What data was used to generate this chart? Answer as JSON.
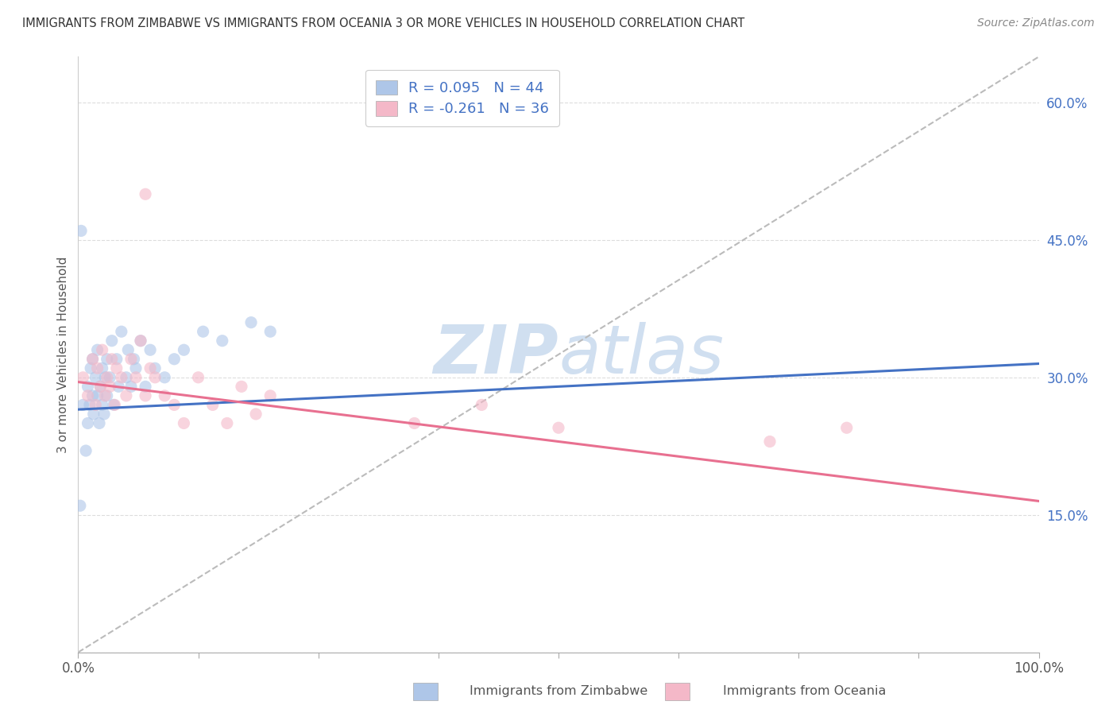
{
  "title": "IMMIGRANTS FROM ZIMBABWE VS IMMIGRANTS FROM OCEANIA 3 OR MORE VEHICLES IN HOUSEHOLD CORRELATION CHART",
  "source": "Source: ZipAtlas.com",
  "ylabel": "3 or more Vehicles in Household",
  "yticks": [
    0.0,
    0.15,
    0.3,
    0.45,
    0.6
  ],
  "ytick_labels": [
    "",
    "15.0%",
    "30.0%",
    "45.0%",
    "60.0%"
  ],
  "xlim": [
    0.0,
    1.0
  ],
  "ylim": [
    0.0,
    0.65
  ],
  "xtick_positions": [
    0.0,
    0.125,
    0.25,
    0.375,
    0.5,
    0.625,
    0.75,
    0.875,
    1.0
  ],
  "legend_entries": [
    {
      "color": "#aec6e8",
      "R": "0.095",
      "N": "44"
    },
    {
      "color": "#f4b8c8",
      "R": "-0.261",
      "N": "36"
    }
  ],
  "series_blue": {
    "color_scatter": "#aec6e8",
    "color_line": "#4472c4",
    "R": 0.095,
    "N": 44
  },
  "series_pink": {
    "color_scatter": "#f4b8c8",
    "color_line": "#e87090",
    "R": -0.261,
    "N": 36
  },
  "trendline_blue": {
    "x_start": 0.0,
    "x_end": 1.0,
    "y_start": 0.265,
    "y_end": 0.315
  },
  "trendline_pink": {
    "x_start": 0.0,
    "x_end": 1.0,
    "y_start": 0.295,
    "y_end": 0.165
  },
  "trendline_gray": {
    "x_start": 0.0,
    "x_end": 1.0,
    "y_start": 0.0,
    "y_end": 0.65
  },
  "watermark_zip": "ZIP",
  "watermark_atlas": "atlas",
  "watermark_color": "#d0dff0",
  "background_color": "#ffffff",
  "scatter_size": 120,
  "scatter_alpha": 0.6,
  "title_color": "#333333",
  "axis_color": "#555555",
  "legend_label_blue": "Immigrants from Zimbabwe",
  "legend_label_pink": "Immigrants from Oceania",
  "blue_x": [
    0.005,
    0.008,
    0.01,
    0.01,
    0.012,
    0.013,
    0.015,
    0.015,
    0.016,
    0.018,
    0.02,
    0.02,
    0.022,
    0.023,
    0.025,
    0.025,
    0.027,
    0.028,
    0.03,
    0.03,
    0.033,
    0.035,
    0.037,
    0.04,
    0.042,
    0.045,
    0.05,
    0.052,
    0.055,
    0.058,
    0.06,
    0.065,
    0.07,
    0.075,
    0.08,
    0.09,
    0.1,
    0.11,
    0.13,
    0.15,
    0.003,
    0.002,
    0.18,
    0.2
  ],
  "blue_y": [
    0.27,
    0.22,
    0.25,
    0.29,
    0.27,
    0.31,
    0.28,
    0.32,
    0.26,
    0.3,
    0.28,
    0.33,
    0.25,
    0.29,
    0.27,
    0.31,
    0.26,
    0.3,
    0.28,
    0.32,
    0.3,
    0.34,
    0.27,
    0.32,
    0.29,
    0.35,
    0.3,
    0.33,
    0.29,
    0.32,
    0.31,
    0.34,
    0.29,
    0.33,
    0.31,
    0.3,
    0.32,
    0.33,
    0.35,
    0.34,
    0.46,
    0.16,
    0.36,
    0.35
  ],
  "pink_x": [
    0.005,
    0.01,
    0.015,
    0.018,
    0.02,
    0.023,
    0.025,
    0.028,
    0.03,
    0.033,
    0.035,
    0.038,
    0.04,
    0.045,
    0.05,
    0.055,
    0.06,
    0.065,
    0.07,
    0.075,
    0.08,
    0.09,
    0.1,
    0.11,
    0.125,
    0.14,
    0.155,
    0.17,
    0.185,
    0.2,
    0.35,
    0.42,
    0.5,
    0.72,
    0.8,
    0.07
  ],
  "pink_y": [
    0.3,
    0.28,
    0.32,
    0.27,
    0.31,
    0.29,
    0.33,
    0.28,
    0.3,
    0.29,
    0.32,
    0.27,
    0.31,
    0.3,
    0.28,
    0.32,
    0.3,
    0.34,
    0.28,
    0.31,
    0.3,
    0.28,
    0.27,
    0.25,
    0.3,
    0.27,
    0.25,
    0.29,
    0.26,
    0.28,
    0.25,
    0.27,
    0.245,
    0.23,
    0.245,
    0.5
  ]
}
